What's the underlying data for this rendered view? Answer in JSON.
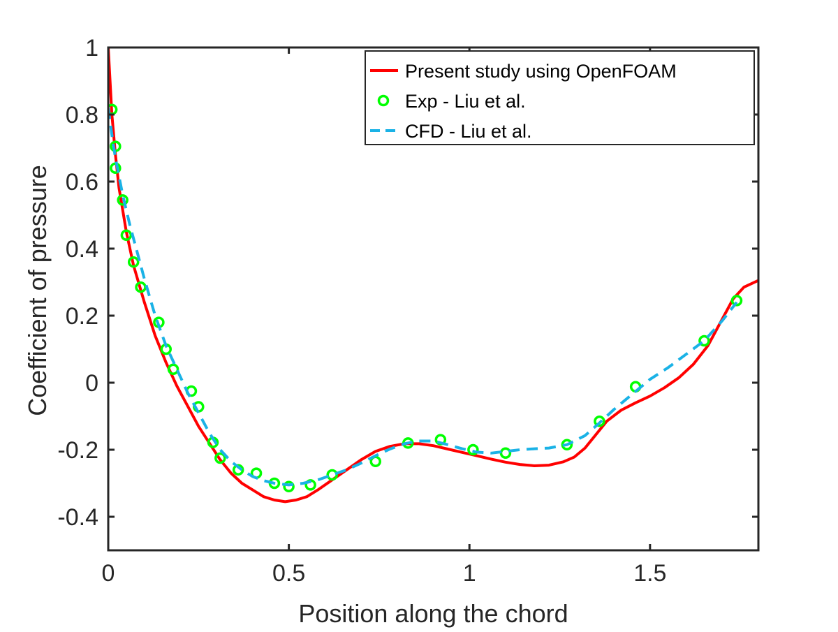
{
  "chart_data": {
    "type": "line",
    "title": "",
    "xlabel": "Position along the chord",
    "ylabel": "Coefficient of pressure",
    "xlim": [
      0,
      1.8
    ],
    "ylim": [
      -0.5,
      1
    ],
    "xticks": [
      0,
      0.5,
      1,
      1.5
    ],
    "xtick_labels": [
      "0",
      "0.5",
      "1",
      "1.5"
    ],
    "yticks": [
      -0.4,
      -0.2,
      0,
      0.2,
      0.4,
      0.6,
      0.8,
      1
    ],
    "ytick_labels": [
      "-0.4",
      "-0.2",
      "0",
      "0.2",
      "0.4",
      "0.6",
      "0.8",
      "1"
    ],
    "grid": false,
    "box": true,
    "legend_position": "top-right",
    "series": [
      {
        "name": "Present study using OpenFOAM",
        "style": "solid-line",
        "color": "#ff0000",
        "x": [
          0.0,
          0.005,
          0.01,
          0.02,
          0.03,
          0.05,
          0.07,
          0.1,
          0.13,
          0.16,
          0.19,
          0.22,
          0.25,
          0.28,
          0.31,
          0.34,
          0.37,
          0.4,
          0.43,
          0.46,
          0.49,
          0.52,
          0.55,
          0.58,
          0.62,
          0.66,
          0.7,
          0.74,
          0.78,
          0.82,
          0.86,
          0.9,
          0.94,
          0.98,
          1.02,
          1.06,
          1.1,
          1.14,
          1.18,
          1.22,
          1.26,
          1.29,
          1.32,
          1.35,
          1.38,
          1.42,
          1.46,
          1.5,
          1.54,
          1.58,
          1.62,
          1.66,
          1.7,
          1.73,
          1.76,
          1.8
        ],
        "y": [
          1.0,
          0.9,
          0.8,
          0.68,
          0.58,
          0.45,
          0.35,
          0.24,
          0.14,
          0.06,
          -0.01,
          -0.07,
          -0.13,
          -0.18,
          -0.23,
          -0.27,
          -0.3,
          -0.32,
          -0.34,
          -0.35,
          -0.355,
          -0.35,
          -0.34,
          -0.32,
          -0.29,
          -0.26,
          -0.23,
          -0.205,
          -0.19,
          -0.182,
          -0.182,
          -0.188,
          -0.198,
          -0.208,
          -0.218,
          -0.228,
          -0.237,
          -0.244,
          -0.248,
          -0.246,
          -0.236,
          -0.222,
          -0.195,
          -0.155,
          -0.115,
          -0.082,
          -0.06,
          -0.04,
          -0.015,
          0.015,
          0.055,
          0.11,
          0.19,
          0.25,
          0.285,
          0.305
        ]
      },
      {
        "name": "Exp - Liu et al.",
        "style": "circle-markers",
        "color": "#00ff00",
        "x": [
          0.01,
          0.02,
          0.02,
          0.04,
          0.05,
          0.07,
          0.09,
          0.14,
          0.16,
          0.18,
          0.23,
          0.25,
          0.29,
          0.31,
          0.36,
          0.41,
          0.46,
          0.5,
          0.56,
          0.62,
          0.74,
          0.83,
          0.92,
          1.01,
          1.1,
          1.27,
          1.36,
          1.46,
          1.65,
          1.74
        ],
        "y": [
          0.815,
          0.705,
          0.64,
          0.545,
          0.44,
          0.36,
          0.285,
          0.18,
          0.1,
          0.04,
          -0.025,
          -0.072,
          -0.178,
          -0.225,
          -0.26,
          -0.27,
          -0.3,
          -0.31,
          -0.305,
          -0.275,
          -0.235,
          -0.18,
          -0.17,
          -0.2,
          -0.21,
          -0.185,
          -0.115,
          -0.012,
          0.125,
          0.245
        ]
      },
      {
        "name": "CFD - Liu et al.",
        "style": "dashed-line",
        "color": "#1ab2e6",
        "x": [
          0.0,
          0.01,
          0.02,
          0.04,
          0.06,
          0.08,
          0.1,
          0.13,
          0.16,
          0.19,
          0.22,
          0.25,
          0.28,
          0.31,
          0.34,
          0.37,
          0.4,
          0.43,
          0.46,
          0.5,
          0.54,
          0.58,
          0.62,
          0.66,
          0.7,
          0.74,
          0.78,
          0.82,
          0.86,
          0.9,
          0.94,
          0.98,
          1.02,
          1.06,
          1.1,
          1.14,
          1.18,
          1.22,
          1.27,
          1.32,
          1.36,
          1.4,
          1.45,
          1.5,
          1.55,
          1.6,
          1.65,
          1.7,
          1.74
        ],
        "y": [
          0.82,
          0.74,
          0.67,
          0.56,
          0.47,
          0.39,
          0.31,
          0.2,
          0.11,
          0.04,
          -0.03,
          -0.09,
          -0.15,
          -0.2,
          -0.235,
          -0.26,
          -0.28,
          -0.292,
          -0.3,
          -0.305,
          -0.3,
          -0.29,
          -0.275,
          -0.26,
          -0.24,
          -0.218,
          -0.198,
          -0.182,
          -0.174,
          -0.174,
          -0.185,
          -0.197,
          -0.207,
          -0.21,
          -0.205,
          -0.2,
          -0.197,
          -0.195,
          -0.185,
          -0.158,
          -0.12,
          -0.08,
          -0.035,
          0.01,
          0.045,
          0.085,
          0.125,
          0.185,
          0.24
        ]
      }
    ]
  }
}
